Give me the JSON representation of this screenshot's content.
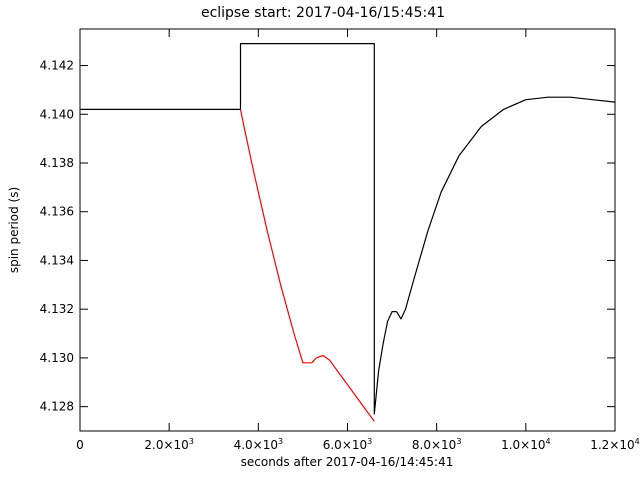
{
  "chart_data": {
    "type": "line",
    "title": "eclipse start: 2017-04-16/15:45:41",
    "xlabel": "seconds after 2017-04-16/14:45:41",
    "ylabel": "spin period (s)",
    "xlim": [
      0,
      12000
    ],
    "ylim": [
      4.127,
      4.1435
    ],
    "grid": false,
    "x_ticks": [
      {
        "value": 0,
        "mantissa": "0",
        "exp": ""
      },
      {
        "value": 2000,
        "mantissa": "2.0×10",
        "exp": "3"
      },
      {
        "value": 4000,
        "mantissa": "4.0×10",
        "exp": "3"
      },
      {
        "value": 6000,
        "mantissa": "6.0×10",
        "exp": "3"
      },
      {
        "value": 8000,
        "mantissa": "8.0×10",
        "exp": "3"
      },
      {
        "value": 10000,
        "mantissa": "1.0×10",
        "exp": "4"
      },
      {
        "value": 12000,
        "mantissa": "1.2×10",
        "exp": "4"
      }
    ],
    "y_ticks": [
      {
        "value": 4.128,
        "label": "4.128"
      },
      {
        "value": 4.13,
        "label": "4.130"
      },
      {
        "value": 4.132,
        "label": "4.132"
      },
      {
        "value": 4.134,
        "label": "4.134"
      },
      {
        "value": 4.136,
        "label": "4.136"
      },
      {
        "value": 4.138,
        "label": "4.138"
      },
      {
        "value": 4.14,
        "label": "4.140"
      },
      {
        "value": 4.142,
        "label": "4.142"
      }
    ],
    "series": [
      {
        "color": "#000000",
        "x": [
          0,
          1000,
          2000,
          3000,
          3500,
          3600,
          3600,
          6600,
          6600,
          6700,
          6800,
          6900,
          7000,
          7100,
          7200,
          7300,
          7500,
          7800,
          8100,
          8500,
          9000,
          9500,
          10000,
          10500,
          11000,
          11500,
          12000
        ],
        "y": [
          4.1402,
          4.1402,
          4.1402,
          4.1402,
          4.1402,
          4.1402,
          4.1429,
          4.1429,
          4.1277,
          4.1295,
          4.1306,
          4.1315,
          4.1319,
          4.1319,
          4.1316,
          4.132,
          4.1333,
          4.1352,
          4.1368,
          4.1383,
          4.1395,
          4.1402,
          4.1406,
          4.1407,
          4.1407,
          4.1406,
          4.1405
        ]
      },
      {
        "color": "#ff0000",
        "x": [
          3600,
          3700,
          3900,
          4200,
          4500,
          4800,
          5000,
          5200,
          5300,
          5450,
          5600,
          5800,
          6000,
          6200,
          6400,
          6600
        ],
        "y": [
          4.1402,
          4.1393,
          4.1376,
          4.1352,
          4.133,
          4.131,
          4.1298,
          4.1298,
          4.13,
          4.1301,
          4.1299,
          4.1294,
          4.1289,
          4.1284,
          4.1279,
          4.1274
        ]
      }
    ]
  }
}
